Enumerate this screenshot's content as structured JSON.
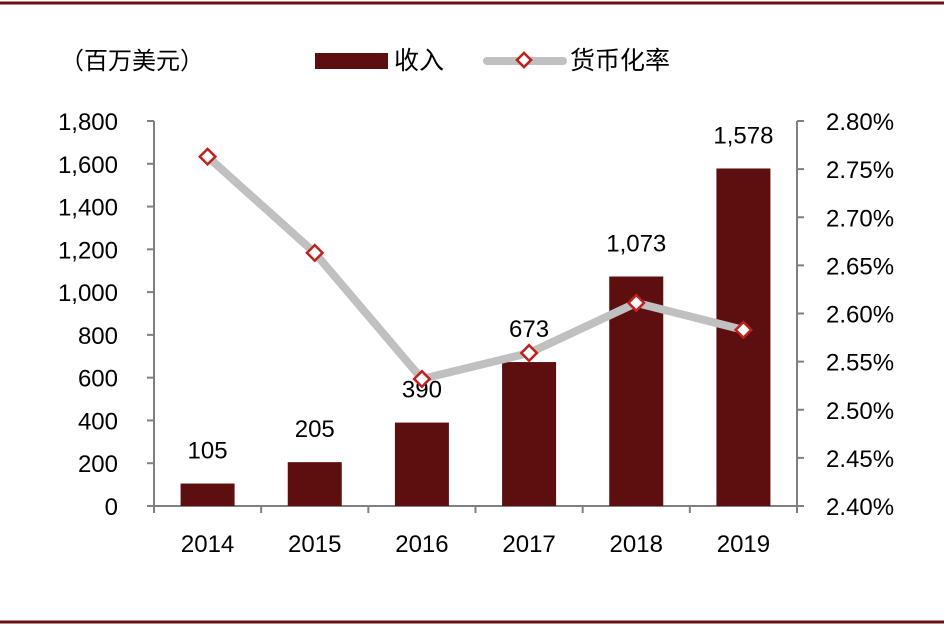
{
  "colors": {
    "bar": "#5c0f0e",
    "line": "#c0c0c0",
    "marker": "#c0201e",
    "axis": "#808080",
    "frame": "#6b0f10"
  },
  "chart_data": {
    "type": "bar",
    "unit_label": "（百万美元）",
    "categories": [
      "2014",
      "2015",
      "2016",
      "2017",
      "2018",
      "2019"
    ],
    "series": [
      {
        "name": "收入",
        "type": "bar",
        "axis": "left",
        "values": [
          105,
          205,
          390,
          673,
          1073,
          1578
        ],
        "data_labels": [
          "105",
          "205",
          "390",
          "673",
          "1,073",
          "1,578"
        ]
      },
      {
        "name": "货币化率",
        "type": "line",
        "axis": "right",
        "values": [
          2.763,
          2.663,
          2.532,
          2.559,
          2.611,
          2.583
        ]
      }
    ],
    "y_left": {
      "ylim": [
        0,
        1800
      ],
      "ticks": [
        0,
        200,
        400,
        600,
        800,
        1000,
        1200,
        1400,
        1600,
        1800
      ],
      "tick_labels": [
        "0",
        "200",
        "400",
        "600",
        "800",
        "1,000",
        "1,200",
        "1,400",
        "1,600",
        "1,800"
      ]
    },
    "y_right": {
      "ylim": [
        2.4,
        2.8
      ],
      "ticks": [
        2.4,
        2.45,
        2.5,
        2.55,
        2.6,
        2.65,
        2.7,
        2.75,
        2.8
      ],
      "tick_labels": [
        "2.40%",
        "2.45%",
        "2.50%",
        "2.55%",
        "2.60%",
        "2.65%",
        "2.70%",
        "2.75%",
        "2.80%"
      ]
    },
    "legend_position": "top",
    "grid": false
  }
}
